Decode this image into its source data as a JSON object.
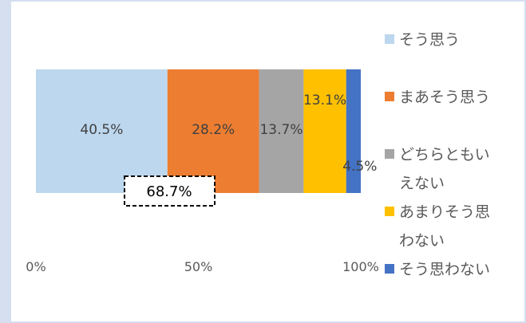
{
  "chart_data": {
    "type": "bar",
    "orientation": "horizontal",
    "stacked": true,
    "categories": [
      ""
    ],
    "series": [
      {
        "name": "そう思う",
        "values": [
          40.5
        ],
        "label": "40.5%",
        "color": "#bdd7ee"
      },
      {
        "name": "まあそう思う",
        "values": [
          28.2
        ],
        "label": "28.2%",
        "color": "#ed7d31"
      },
      {
        "name": "どちらともいえない",
        "values": [
          13.7
        ],
        "label": "13.7%",
        "color": "#a5a5a5"
      },
      {
        "name": "あまりそう思わない",
        "values": [
          13.1
        ],
        "label": "13.1%",
        "color": "#ffc000"
      },
      {
        "name": "そう思わない",
        "values": [
          4.5
        ],
        "label": "4.5%",
        "color": "#4472c4"
      }
    ],
    "legend_lines": [
      [
        "そう思う"
      ],
      [
        "まあそう思う"
      ],
      [
        "どちらともい",
        "えない"
      ],
      [
        "あまりそう思",
        "わない"
      ],
      [
        "そう思わない"
      ]
    ],
    "x_ticks": [
      "0%",
      "50%",
      "100%"
    ],
    "xlim": [
      0,
      100
    ],
    "annotation": "68.7%",
    "legend_position": "right",
    "grid": false
  }
}
